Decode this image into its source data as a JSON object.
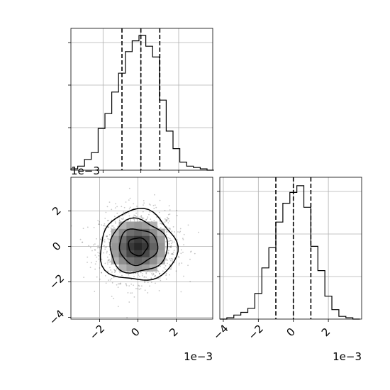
{
  "chart_data": [
    {
      "panel": "x0-marginal",
      "type": "histogram",
      "xlim": [
        -0.0037,
        0.0038
      ],
      "bin_width": 0.00036,
      "bin_starts": [
        -0.0037,
        -0.00334,
        -0.00298,
        -0.00262,
        -0.00226,
        -0.0019,
        -0.00154,
        -0.00118,
        -0.00082,
        -0.00046,
        -0.0001,
        0.00026,
        0.00062,
        0.00098,
        0.00134,
        0.0017,
        0.00206,
        0.00242,
        0.00278,
        0.00314,
        0.0035
      ],
      "counts": [
        0.01,
        0.03,
        0.08,
        0.13,
        0.31,
        0.42,
        0.58,
        0.72,
        0.88,
        0.96,
        1.0,
        0.92,
        0.84,
        0.52,
        0.29,
        0.16,
        0.06,
        0.03,
        0.02,
        0.01,
        0.0
      ],
      "quantile_lines": [
        -0.001,
        0.0,
        0.001
      ],
      "grid": true
    },
    {
      "panel": "joint",
      "type": "heatmap",
      "xlim": [
        -0.0035,
        0.0039
      ],
      "ylim": [
        -0.0041,
        0.0039
      ],
      "x_tick_labels": [
        "−2",
        "0",
        "2"
      ],
      "x_tick_values": [
        -0.002,
        0.0,
        0.002
      ],
      "y_tick_labels": [
        "−4",
        "−2",
        "0",
        "2"
      ],
      "y_tick_values": [
        -0.004,
        -0.002,
        0.0,
        0.002
      ],
      "x_offset_label": "1e−3",
      "y_offset_label": "1e−3",
      "distribution": {
        "center": [
          0.0,
          0.0
        ],
        "std": [
          0.001,
          0.001
        ]
      },
      "contour_radii": [
        0.0005,
        0.001,
        0.0015,
        0.002
      ],
      "grid": true
    },
    {
      "panel": "x1-marginal",
      "type": "histogram",
      "xlim": [
        -0.0042,
        0.0039
      ],
      "bin_width": 0.0004,
      "bin_starts": [
        -0.0042,
        -0.0038,
        -0.0034,
        -0.003,
        -0.0026,
        -0.0022,
        -0.0018,
        -0.0014,
        -0.001,
        -0.0006,
        -0.0002,
        0.0002,
        0.0006,
        0.001,
        0.0014,
        0.0018,
        0.0022,
        0.0026,
        0.003,
        0.0034
      ],
      "counts": [
        0.0,
        0.01,
        0.03,
        0.05,
        0.08,
        0.19,
        0.38,
        0.53,
        0.72,
        0.86,
        0.94,
        0.99,
        0.83,
        0.54,
        0.36,
        0.17,
        0.07,
        0.02,
        0.01,
        0.0
      ],
      "x_tick_labels": [
        "−4",
        "−2",
        "0",
        "2"
      ],
      "x_tick_values": [
        -0.004,
        -0.002,
        0.0,
        0.002
      ],
      "x_offset_label": "1e−3",
      "quantile_lines": [
        -0.001,
        0.0,
        0.001
      ],
      "grid": true
    }
  ]
}
